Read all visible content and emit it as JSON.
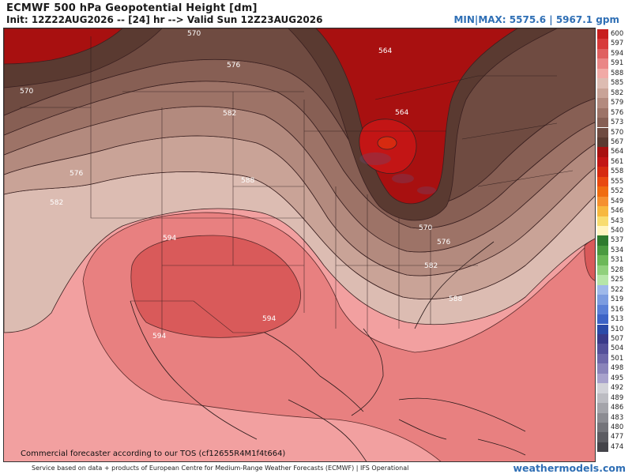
{
  "header": {
    "title": "ECMWF 500 hPa Geopotential Height [dm]",
    "subtitle": "Init: 12Z22AUG2026 -- [24] hr --> Valid Sun 12Z23AUG2026",
    "minmax": "MIN|MAX: 5575.6 | 5967.1 gpm"
  },
  "legend": {
    "items": [
      {
        "label": "600",
        "color": "#c81e1e"
      },
      {
        "label": "597",
        "color": "#d83a3a"
      },
      {
        "label": "594",
        "color": "#e06060"
      },
      {
        "label": "591",
        "color": "#ea8686"
      },
      {
        "label": "588",
        "color": "#f1aaa6"
      },
      {
        "label": "585",
        "color": "#ddbcb2"
      },
      {
        "label": "582",
        "color": "#c9a397"
      },
      {
        "label": "579",
        "color": "#b38a7e"
      },
      {
        "label": "576",
        "color": "#9d7367"
      },
      {
        "label": "573",
        "color": "#875f54"
      },
      {
        "label": "570",
        "color": "#6f4b41"
      },
      {
        "label": "567",
        "color": "#5a3a31"
      },
      {
        "label": "564",
        "color": "#a81010"
      },
      {
        "label": "561",
        "color": "#c31515"
      },
      {
        "label": "558",
        "color": "#d62a10"
      },
      {
        "label": "555",
        "color": "#e94a10"
      },
      {
        "label": "552",
        "color": "#f06c10"
      },
      {
        "label": "549",
        "color": "#f59030"
      },
      {
        "label": "546",
        "color": "#f7b840"
      },
      {
        "label": "543",
        "color": "#f8dc70"
      },
      {
        "label": "540",
        "color": "#fff4c0"
      },
      {
        "label": "537",
        "color": "#2e7b2e"
      },
      {
        "label": "534",
        "color": "#4a9a40"
      },
      {
        "label": "531",
        "color": "#6cb858"
      },
      {
        "label": "528",
        "color": "#90d07c"
      },
      {
        "label": "525",
        "color": "#b6e6a8"
      },
      {
        "label": "522",
        "color": "#9fb9ea"
      },
      {
        "label": "519",
        "color": "#7c9ce0"
      },
      {
        "label": "516",
        "color": "#5a7fd6"
      },
      {
        "label": "513",
        "color": "#3d63c6"
      },
      {
        "label": "510",
        "color": "#2b4aa8"
      },
      {
        "label": "507",
        "color": "#3a3a8a"
      },
      {
        "label": "504",
        "color": "#54509a"
      },
      {
        "label": "501",
        "color": "#6e68aa"
      },
      {
        "label": "498",
        "color": "#8a84ba"
      },
      {
        "label": "495",
        "color": "#a8a2cc"
      },
      {
        "label": "492",
        "color": "#d2d2d8"
      },
      {
        "label": "489",
        "color": "#bcbcc2"
      },
      {
        "label": "486",
        "color": "#a4a4aa"
      },
      {
        "label": "483",
        "color": "#8c8c92"
      },
      {
        "label": "480",
        "color": "#74747a"
      },
      {
        "label": "477",
        "color": "#5c5c62"
      },
      {
        "label": "474",
        "color": "#44444a"
      }
    ]
  },
  "contour_labels": [
    {
      "text": "570"
    },
    {
      "text": "564"
    },
    {
      "text": "570"
    },
    {
      "text": "576"
    },
    {
      "text": "582"
    },
    {
      "text": "564"
    },
    {
      "text": "576"
    },
    {
      "text": "582"
    },
    {
      "text": "588"
    },
    {
      "text": "594"
    },
    {
      "text": "570"
    },
    {
      "text": "576"
    },
    {
      "text": "582"
    },
    {
      "text": "588"
    },
    {
      "text": "594"
    },
    {
      "text": "594"
    }
  ],
  "watermark": "Commercial forecaster according to our TOS (cf12655R4M1f4t664)",
  "footer": "Service based on data + products of European Centre for Medium-Range Weather Forecasts (ECMWF) | IFS Operational",
  "brand": "weathermodels.com"
}
